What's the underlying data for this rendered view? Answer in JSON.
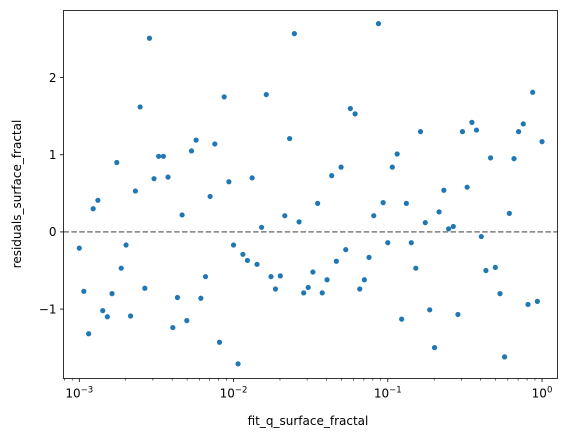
{
  "chart_data": {
    "type": "scatter",
    "xlabel": "fit_q_surface_fractal",
    "ylabel": "residuals_surface_fractal",
    "xscale": "log",
    "xlim": [
      0.00079,
      1.26
    ],
    "ylim": [
      -1.9,
      2.87
    ],
    "grid": false,
    "legend": "none",
    "marker_color": "#1f77b4",
    "reference_line": {
      "y": 0,
      "style": "dashed",
      "color": "#7f7f7f"
    },
    "x_ticks": [
      {
        "value": 0.001,
        "base": "10",
        "exp": "−3"
      },
      {
        "value": 0.01,
        "base": "10",
        "exp": "−2"
      },
      {
        "value": 0.1,
        "base": "10",
        "exp": "−1"
      },
      {
        "value": 1,
        "base": "10",
        "exp": "0"
      }
    ],
    "y_ticks": [
      {
        "value": -1,
        "label": "−1"
      },
      {
        "value": 0,
        "label": "0"
      },
      {
        "value": 1,
        "label": "1"
      },
      {
        "value": 2,
        "label": "2"
      }
    ],
    "points": [
      {
        "x": 0.001,
        "y": -0.21
      },
      {
        "x": 0.00107,
        "y": -0.77
      },
      {
        "x": 0.00115,
        "y": -1.32
      },
      {
        "x": 0.00123,
        "y": 0.3
      },
      {
        "x": 0.00132,
        "y": 0.41
      },
      {
        "x": 0.00142,
        "y": -1.02
      },
      {
        "x": 0.00152,
        "y": -1.1
      },
      {
        "x": 0.00163,
        "y": -0.8
      },
      {
        "x": 0.00175,
        "y": 0.9
      },
      {
        "x": 0.00187,
        "y": -0.47
      },
      {
        "x": 0.00201,
        "y": -0.17
      },
      {
        "x": 0.00215,
        "y": -1.09
      },
      {
        "x": 0.00231,
        "y": 0.53
      },
      {
        "x": 0.00248,
        "y": 1.62
      },
      {
        "x": 0.00266,
        "y": -0.73
      },
      {
        "x": 0.00285,
        "y": 2.51
      },
      {
        "x": 0.00305,
        "y": 0.69
      },
      {
        "x": 0.00327,
        "y": 0.98
      },
      {
        "x": 0.00351,
        "y": 0.98
      },
      {
        "x": 0.00376,
        "y": 0.71
      },
      {
        "x": 0.00404,
        "y": -1.24
      },
      {
        "x": 0.00433,
        "y": -0.85
      },
      {
        "x": 0.00464,
        "y": 0.22
      },
      {
        "x": 0.00498,
        "y": -1.15
      },
      {
        "x": 0.00534,
        "y": 1.05
      },
      {
        "x": 0.00572,
        "y": 1.19
      },
      {
        "x": 0.00614,
        "y": -0.86
      },
      {
        "x": 0.00658,
        "y": -0.58
      },
      {
        "x": 0.00705,
        "y": 0.46
      },
      {
        "x": 0.00756,
        "y": 1.14
      },
      {
        "x": 0.00811,
        "y": -1.43
      },
      {
        "x": 0.0087,
        "y": 1.75
      },
      {
        "x": 0.00933,
        "y": 0.65
      },
      {
        "x": 0.01,
        "y": -0.17
      },
      {
        "x": 0.0107,
        "y": -1.71
      },
      {
        "x": 0.0115,
        "y": -0.29
      },
      {
        "x": 0.0123,
        "y": -0.37
      },
      {
        "x": 0.0132,
        "y": 0.7
      },
      {
        "x": 0.0142,
        "y": -0.42
      },
      {
        "x": 0.0152,
        "y": 0.06
      },
      {
        "x": 0.0163,
        "y": 1.78
      },
      {
        "x": 0.0175,
        "y": -0.58
      },
      {
        "x": 0.0187,
        "y": -0.74
      },
      {
        "x": 0.0201,
        "y": -0.57
      },
      {
        "x": 0.0215,
        "y": 0.21
      },
      {
        "x": 0.0231,
        "y": 1.21
      },
      {
        "x": 0.0248,
        "y": 2.57
      },
      {
        "x": 0.0266,
        "y": 0.13
      },
      {
        "x": 0.0285,
        "y": -0.79
      },
      {
        "x": 0.0305,
        "y": -0.72
      },
      {
        "x": 0.0327,
        "y": -0.52
      },
      {
        "x": 0.0351,
        "y": 0.37
      },
      {
        "x": 0.0376,
        "y": -0.79
      },
      {
        "x": 0.0404,
        "y": -0.62
      },
      {
        "x": 0.0433,
        "y": 0.73
      },
      {
        "x": 0.0464,
        "y": -0.38
      },
      {
        "x": 0.0498,
        "y": 0.84
      },
      {
        "x": 0.0534,
        "y": -0.23
      },
      {
        "x": 0.0572,
        "y": 1.6
      },
      {
        "x": 0.0614,
        "y": 1.53
      },
      {
        "x": 0.0658,
        "y": -0.74
      },
      {
        "x": 0.0705,
        "y": -0.62
      },
      {
        "x": 0.0756,
        "y": -0.33
      },
      {
        "x": 0.0811,
        "y": 0.21
      },
      {
        "x": 0.087,
        "y": 2.7
      },
      {
        "x": 0.0933,
        "y": 0.38
      },
      {
        "x": 0.1,
        "y": -0.14
      },
      {
        "x": 0.107,
        "y": 0.84
      },
      {
        "x": 0.115,
        "y": 1.01
      },
      {
        "x": 0.123,
        "y": -1.13
      },
      {
        "x": 0.132,
        "y": 0.37
      },
      {
        "x": 0.142,
        "y": -0.14
      },
      {
        "x": 0.152,
        "y": -0.47
      },
      {
        "x": 0.163,
        "y": 1.3
      },
      {
        "x": 0.175,
        "y": 0.12
      },
      {
        "x": 0.187,
        "y": -1.01
      },
      {
        "x": 0.201,
        "y": -1.5
      },
      {
        "x": 0.215,
        "y": 0.26
      },
      {
        "x": 0.231,
        "y": 0.54
      },
      {
        "x": 0.248,
        "y": 0.04
      },
      {
        "x": 0.266,
        "y": 0.07
      },
      {
        "x": 0.285,
        "y": -1.07
      },
      {
        "x": 0.305,
        "y": 1.3
      },
      {
        "x": 0.327,
        "y": 0.58
      },
      {
        "x": 0.351,
        "y": 1.42
      },
      {
        "x": 0.376,
        "y": 1.32
      },
      {
        "x": 0.404,
        "y": -0.06
      },
      {
        "x": 0.433,
        "y": -0.5
      },
      {
        "x": 0.464,
        "y": 0.96
      },
      {
        "x": 0.498,
        "y": -0.46
      },
      {
        "x": 0.534,
        "y": -0.8
      },
      {
        "x": 0.572,
        "y": -1.62
      },
      {
        "x": 0.614,
        "y": 0.24
      },
      {
        "x": 0.658,
        "y": 0.95
      },
      {
        "x": 0.705,
        "y": 1.3
      },
      {
        "x": 0.756,
        "y": 1.4
      },
      {
        "x": 0.811,
        "y": -0.94
      },
      {
        "x": 0.87,
        "y": 1.81
      },
      {
        "x": 0.933,
        "y": -0.9
      },
      {
        "x": 1.0,
        "y": 1.17
      }
    ]
  }
}
